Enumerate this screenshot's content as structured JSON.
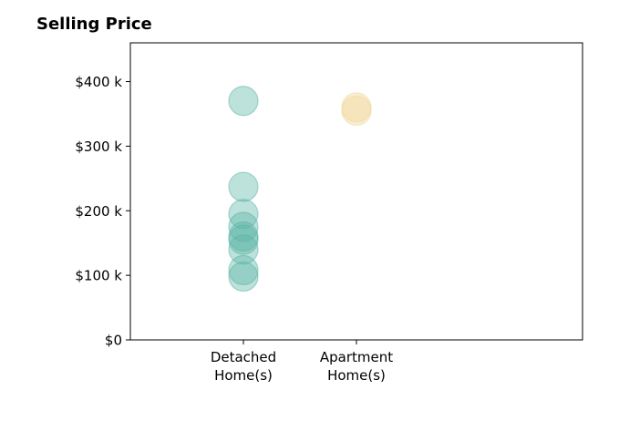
{
  "chart_data": {
    "type": "scatter",
    "title": "Selling Price",
    "xlabel": "",
    "ylabel": "",
    "categories": [
      "Detached\nHome(s)",
      "Apartment\nHome(s)"
    ],
    "ylim": [
      0,
      460000
    ],
    "yticks": [
      0,
      100000,
      200000,
      300000,
      400000
    ],
    "ytick_labels": [
      "$0",
      "$100 k",
      "$200 k",
      "$300 k",
      "$400 k"
    ],
    "grid": false,
    "series": [
      {
        "category": "Detached\nHome(s)",
        "color": "#5ab4a6",
        "values": [
          370000,
          237000,
          195000,
          175000,
          160000,
          155000,
          140000,
          108000,
          98000
        ]
      },
      {
        "category": "Apartment\nHome(s)",
        "color": "#f0d596",
        "values": [
          360000,
          355000
        ]
      }
    ]
  }
}
